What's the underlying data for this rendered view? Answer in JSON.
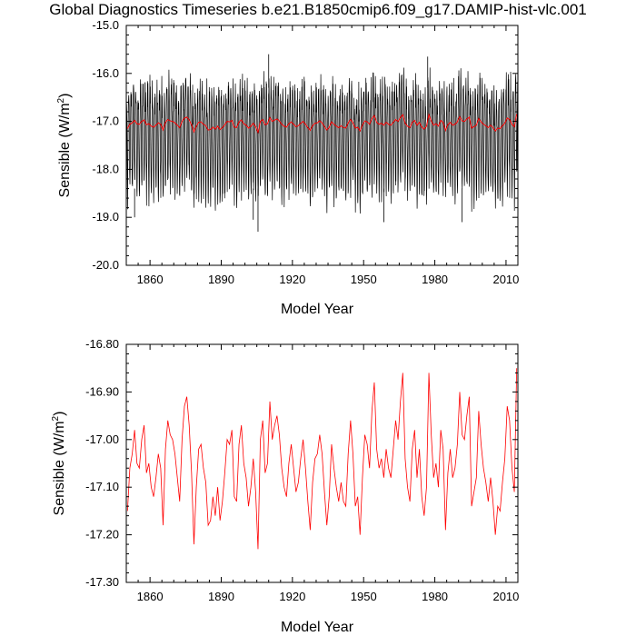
{
  "title": "Global Diagnostics Timeseries b.e21.B1850cmip6.f09_g17.DAMIP-hist-vlc.001",
  "colors": {
    "monthly": "#000000",
    "annual": "#ff0000",
    "axis": "#000000"
  },
  "chart_data": [
    {
      "type": "line",
      "xlabel": "Model Year",
      "ylabel_text": "Sensible (W/m",
      "ylabel_sup": "2",
      "ylabel_close": ")",
      "xlim": [
        1850,
        2015
      ],
      "ylim": [
        -20.0,
        -15.0
      ],
      "xticks": [
        1860,
        1890,
        1920,
        1950,
        1980,
        2010
      ],
      "xtick_labels": [
        "1860",
        "1890",
        "1920",
        "1950",
        "1980",
        "2010"
      ],
      "yticks": [
        -20.0,
        -19.0,
        -18.0,
        -17.0,
        -16.0,
        -15.0
      ],
      "ytick_labels": [
        "-20.0",
        "-19.0",
        "-18.0",
        "-17.0",
        "-16.0",
        "-15.0"
      ],
      "series": [
        {
          "kind": "monthly",
          "description_values": "monthly global-mean sensible heat flux oscillating roughly between -18.6 and -16.2 W/m2 with a seasonal cycle",
          "x_start": 1850,
          "x_end": 2015,
          "seasonal_cycle": [
            -16.6,
            -16.4,
            -16.7,
            -17.2,
            -17.8,
            -18.3,
            -18.5,
            -18.2,
            -17.6,
            -17.0,
            -16.6,
            -16.3
          ],
          "extremes": [
            {
              "x": 1853.5,
              "y": -19.0
            },
            {
              "x": 1903.5,
              "y": -19.05
            },
            {
              "x": 1905.5,
              "y": -19.3
            },
            {
              "x": 1958.5,
              "y": -19.1
            },
            {
              "x": 1991.5,
              "y": -19.1
            },
            {
              "x": 1910.0,
              "y": -15.6
            },
            {
              "x": 1977.0,
              "y": -15.65
            }
          ]
        },
        {
          "kind": "annual",
          "x_start": 1850,
          "values_ref": "annual_values"
        }
      ]
    },
    {
      "type": "line",
      "xlabel": "Model Year",
      "ylabel_text": "Sensible (W/m",
      "ylabel_sup": "2",
      "ylabel_close": ")",
      "xlim": [
        1850,
        2015
      ],
      "ylim": [
        -17.3,
        -16.8
      ],
      "xticks": [
        1860,
        1890,
        1920,
        1950,
        1980,
        2010
      ],
      "xtick_labels": [
        "1860",
        "1890",
        "1920",
        "1950",
        "1980",
        "2010"
      ],
      "yticks": [
        -17.3,
        -17.2,
        -17.1,
        -17.0,
        -16.9,
        -16.8
      ],
      "ytick_labels": [
        "-17.30",
        "-17.20",
        "-17.10",
        "-17.00",
        "-16.90",
        "-16.80"
      ],
      "series": [
        {
          "kind": "annual",
          "x_start": 1850,
          "values_ref": "annual_values"
        }
      ]
    }
  ],
  "annual_values": [
    -17.15,
    -17.06,
    -17.03,
    -16.98,
    -17.05,
    -17.06,
    -17.0,
    -16.97,
    -17.07,
    -17.05,
    -17.1,
    -17.12,
    -17.08,
    -17.03,
    -17.06,
    -17.18,
    -17.02,
    -16.96,
    -16.99,
    -17.0,
    -17.03,
    -17.08,
    -17.13,
    -17.0,
    -16.93,
    -16.91,
    -16.97,
    -17.07,
    -17.22,
    -17.1,
    -17.02,
    -17.01,
    -17.06,
    -17.09,
    -17.18,
    -17.17,
    -17.12,
    -17.16,
    -17.1,
    -17.17,
    -17.13,
    -17.07,
    -17.0,
    -17.01,
    -16.98,
    -17.12,
    -17.13,
    -17.01,
    -16.97,
    -17.05,
    -17.08,
    -17.14,
    -17.1,
    -17.04,
    -17.11,
    -17.23,
    -17.0,
    -16.96,
    -17.07,
    -17.05,
    -16.92,
    -17.0,
    -16.97,
    -16.95,
    -16.99,
    -17.06,
    -17.1,
    -17.12,
    -17.05,
    -17.01,
    -17.06,
    -17.11,
    -17.09,
    -17.04,
    -17.0,
    -17.06,
    -17.13,
    -17.19,
    -17.09,
    -17.04,
    -17.03,
    -16.99,
    -17.03,
    -17.11,
    -17.18,
    -17.12,
    -17.01,
    -17.06,
    -17.1,
    -17.13,
    -17.09,
    -17.13,
    -17.14,
    -17.03,
    -16.96,
    -17.03,
    -17.14,
    -17.12,
    -17.2,
    -17.08,
    -16.99,
    -17.01,
    -17.06,
    -16.94,
    -16.88,
    -17.02,
    -17.06,
    -17.04,
    -17.08,
    -17.02,
    -17.06,
    -17.08,
    -17.02,
    -16.96,
    -17.0,
    -16.92,
    -16.86,
    -17.04,
    -17.1,
    -17.13,
    -17.02,
    -16.98,
    -17.08,
    -17.02,
    -17.12,
    -17.16,
    -17.1,
    -16.86,
    -16.99,
    -17.08,
    -17.05,
    -17.1,
    -16.98,
    -17.02,
    -17.19,
    -17.07,
    -17.02,
    -17.08,
    -17.06,
    -17.01,
    -16.9,
    -16.99,
    -17.0,
    -16.95,
    -16.91,
    -17.14,
    -17.11,
    -17.08,
    -16.94,
    -17.01,
    -17.06,
    -17.09,
    -17.13,
    -17.08,
    -17.13,
    -17.2,
    -17.14,
    -17.15,
    -17.09,
    -17.04,
    -16.93,
    -16.96,
    -17.06,
    -17.11,
    -16.85
  ]
}
